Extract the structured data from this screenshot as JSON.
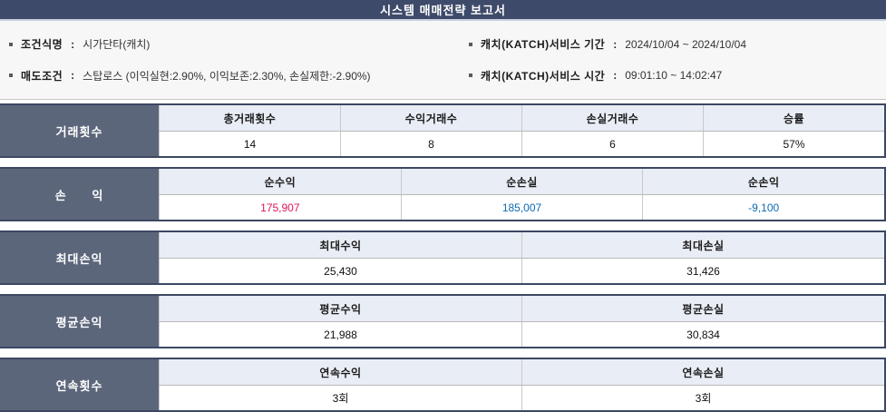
{
  "title": "시스템 매매전략 보고서",
  "colors": {
    "navy": "#3e4a69",
    "frame": "#3c4763",
    "label_bg": "#5c667b",
    "header_bg": "#e9edf5",
    "red": "#dc1658",
    "blue": "#0b6ab4",
    "black": "#111111"
  },
  "info": {
    "separator": ":",
    "items": [
      {
        "label": "조건식명",
        "value": "시가단타(캐치)"
      },
      {
        "label": "매도조건",
        "value": "스탑로스 (이익실현:2.90%, 이익보존:2.30%, 손실제한:-2.90%)"
      },
      {
        "label": "캐치(KATCH)서비스 기간",
        "value": "2024/10/04 ~ 2024/10/04"
      },
      {
        "label": "캐치(KATCH)서비스 시간",
        "value": "09:01:10 ~ 14:02:47"
      }
    ]
  },
  "tables": [
    {
      "id": "trade-count",
      "name": "거래횟수",
      "columns": [
        {
          "header": "총거래횟수",
          "value": "14",
          "color": "black"
        },
        {
          "header": "수익거래수",
          "value": "8",
          "color": "black"
        },
        {
          "header": "손실거래수",
          "value": "6",
          "color": "black"
        },
        {
          "header": "승률",
          "value": "57%",
          "color": "black"
        }
      ]
    },
    {
      "id": "profit-loss",
      "name": "손      익",
      "columns": [
        {
          "header": "순수익",
          "value": "175,907",
          "color": "red"
        },
        {
          "header": "순손실",
          "value": "185,007",
          "color": "blue"
        },
        {
          "header": "순손익",
          "value": "-9,100",
          "color": "blue"
        }
      ]
    },
    {
      "id": "max-profit-loss",
      "name": "최대손익",
      "columns": [
        {
          "header": "최대수익",
          "value": "25,430",
          "color": "black"
        },
        {
          "header": "최대손실",
          "value": "31,426",
          "color": "black"
        }
      ]
    },
    {
      "id": "avg-profit-loss",
      "name": "평균손익",
      "columns": [
        {
          "header": "평균수익",
          "value": "21,988",
          "color": "black"
        },
        {
          "header": "평균손실",
          "value": "30,834",
          "color": "black"
        }
      ]
    },
    {
      "id": "consecutive-count",
      "name": "연속횟수",
      "columns": [
        {
          "header": "연속수익",
          "value": "3회",
          "color": "black"
        },
        {
          "header": "연속손실",
          "value": "3회",
          "color": "black"
        }
      ]
    }
  ]
}
